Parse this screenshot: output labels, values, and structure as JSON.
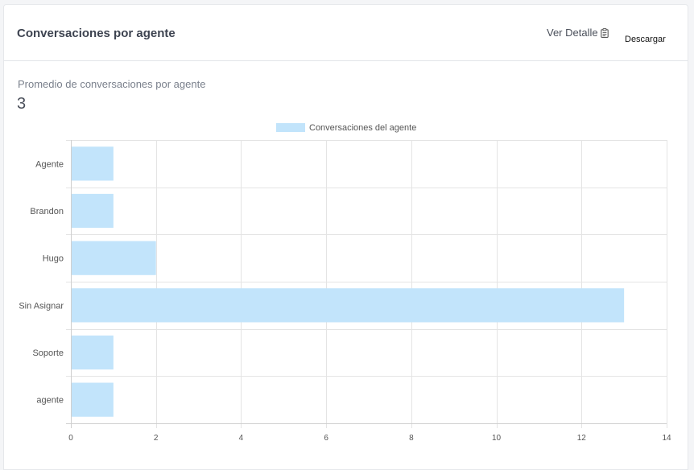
{
  "header": {
    "title": "Conversaciones por agente",
    "detail_link": "Ver Detalle",
    "download_label": "Descargar"
  },
  "summary": {
    "label": "Promedio de conversaciones por agente",
    "value": "3"
  },
  "chart_data": {
    "type": "bar",
    "orientation": "horizontal",
    "categories": [
      "Agente",
      "Brandon",
      "Hugo",
      "Sin Asignar",
      "Soporte",
      "agente"
    ],
    "series": [
      {
        "name": "Conversaciones del agente",
        "values": [
          1,
          1,
          2,
          13,
          1,
          1
        ],
        "color": "#c2e4fb"
      }
    ],
    "xlim": [
      0,
      14
    ],
    "x_ticks": [
      0,
      2,
      4,
      6,
      8,
      10,
      12,
      14
    ],
    "grid": true,
    "legend_position": "top-center",
    "title": "",
    "xlabel": "",
    "ylabel": ""
  }
}
